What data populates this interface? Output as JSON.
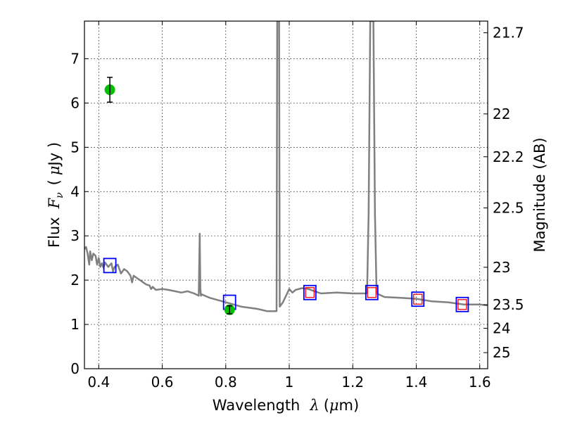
{
  "chart_data": {
    "type": "line",
    "xlabel_text": "Wavelength",
    "xlabel_lambda": "λ",
    "xlabel_unit_open": "(",
    "xlabel_unit_mu": "μ",
    "xlabel_unit_rest": "m)",
    "ylabel_text": "Flux",
    "ylabel_F": "F",
    "ylabel_sub": "ν",
    "ylabel_paren_open": "(",
    "ylabel_mu": "μ",
    "ylabel_unit": "Jy )",
    "y2label": "Magnitude (AB)",
    "xlim": [
      0.355,
      1.625
    ],
    "ylim": [
      0,
      7.85
    ],
    "grid": true,
    "x_ticks": [
      0.4,
      0.6,
      0.8,
      1.0,
      1.2,
      1.4,
      1.6
    ],
    "x_tick_labels": [
      "0.4",
      "0.6",
      "0.8",
      "1",
      "1.2",
      "1.4",
      "1.6"
    ],
    "y_ticks": [
      0,
      1,
      2,
      3,
      4,
      5,
      6,
      7
    ],
    "y_tick_labels": [
      "0",
      "1",
      "2",
      "3",
      "4",
      "5",
      "6",
      "7"
    ],
    "mag_ticks": [
      21.7,
      22,
      22.2,
      22.5,
      23,
      23.5,
      24,
      25
    ],
    "mag_tick_labels": [
      "21.7",
      "22",
      "22.2",
      "22.5",
      "23",
      "23.5",
      "24",
      "25"
    ],
    "series": [
      {
        "kind": "model_spectrum",
        "color": "#808080",
        "x": [
          0.355,
          0.36,
          0.365,
          0.37,
          0.373,
          0.378,
          0.383,
          0.39,
          0.395,
          0.4,
          0.405,
          0.41,
          0.415,
          0.42,
          0.43,
          0.44,
          0.445,
          0.45,
          0.46,
          0.47,
          0.48,
          0.49,
          0.5,
          0.505,
          0.51,
          0.52,
          0.53,
          0.54,
          0.55,
          0.56,
          0.565,
          0.57,
          0.58,
          0.6,
          0.62,
          0.64,
          0.66,
          0.68,
          0.7,
          0.715,
          0.718,
          0.72,
          0.722,
          0.725,
          0.73,
          0.75,
          0.8,
          0.85,
          0.9,
          0.93,
          0.95,
          0.96,
          0.962,
          0.965,
          0.968,
          0.97,
          0.975,
          0.98,
          0.99,
          1.0,
          1.01,
          1.02,
          1.04,
          1.06,
          1.08,
          1.1,
          1.15,
          1.2,
          1.245,
          1.25,
          1.255,
          1.26,
          1.265,
          1.27,
          1.275,
          1.3,
          1.35,
          1.4,
          1.45,
          1.5,
          1.55,
          1.6,
          1.625
        ],
        "y": [
          2.7,
          2.75,
          2.6,
          2.35,
          2.65,
          2.45,
          2.6,
          2.55,
          2.35,
          2.5,
          2.3,
          2.38,
          2.28,
          2.4,
          2.3,
          2.38,
          2.2,
          2.3,
          2.35,
          2.15,
          2.25,
          2.2,
          2.1,
          1.95,
          2.1,
          2.05,
          2.0,
          1.95,
          1.9,
          1.88,
          1.8,
          1.85,
          1.78,
          1.8,
          1.78,
          1.75,
          1.72,
          1.75,
          1.7,
          1.65,
          3.05,
          1.8,
          1.65,
          1.68,
          1.66,
          1.6,
          1.5,
          1.4,
          1.35,
          1.3,
          1.3,
          1.3,
          7.85,
          7.85,
          7.85,
          1.4,
          1.45,
          1.5,
          1.65,
          1.8,
          1.72,
          1.78,
          1.82,
          1.8,
          1.75,
          1.7,
          1.72,
          1.7,
          1.7,
          3.5,
          7.85,
          7.85,
          7.85,
          3.5,
          1.7,
          1.62,
          1.6,
          1.58,
          1.52,
          1.5,
          1.45,
          1.45,
          1.43
        ]
      },
      {
        "kind": "observed_photometry",
        "color": "#00c000",
        "points": [
          {
            "x": 0.435,
            "y": 6.3,
            "err": 0.28
          },
          {
            "x": 0.812,
            "y": 1.33,
            "err": 0.09
          }
        ]
      },
      {
        "kind": "model_photometry",
        "color": "#0000ff",
        "points": [
          {
            "x": 0.435,
            "y": 2.33
          },
          {
            "x": 0.812,
            "y": 1.5
          },
          {
            "x": 1.065,
            "y": 1.72
          },
          {
            "x": 1.26,
            "y": 1.72
          },
          {
            "x": 1.405,
            "y": 1.57
          },
          {
            "x": 1.545,
            "y": 1.45
          }
        ]
      },
      {
        "kind": "red_photometry",
        "color": "#ff0000",
        "points": [
          {
            "x": 1.065,
            "y": 1.72
          },
          {
            "x": 1.26,
            "y": 1.72
          },
          {
            "x": 1.405,
            "y": 1.57
          },
          {
            "x": 1.545,
            "y": 1.45
          }
        ]
      }
    ]
  }
}
